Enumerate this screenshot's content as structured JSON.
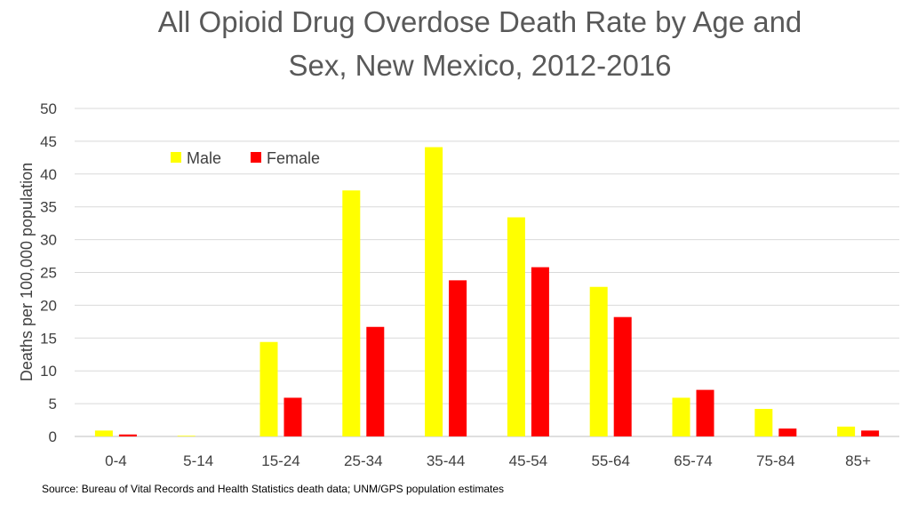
{
  "chart_data": {
    "type": "bar",
    "title_lines": [
      "All Opioid Drug Overdose Death Rate by Age and",
      "Sex, New Mexico, 2012-2016"
    ],
    "ylabel": "Deaths per 100,000 population",
    "xlabel": "",
    "ylim": [
      0,
      50
    ],
    "yticks": [
      0,
      5,
      10,
      15,
      20,
      25,
      30,
      35,
      40,
      45,
      50
    ],
    "grid": true,
    "legend_position": "top-left",
    "categories": [
      "0-4",
      "5-14",
      "15-24",
      "25-34",
      "35-44",
      "45-54",
      "55-64",
      "65-74",
      "75-84",
      "85+"
    ],
    "series": [
      {
        "name": "Male",
        "color": "#ffff00",
        "values": [
          0.9,
          0.1,
          14.4,
          37.5,
          44.1,
          33.4,
          22.8,
          5.9,
          4.2,
          1.5
        ]
      },
      {
        "name": "Female",
        "color": "#ff0000",
        "values": [
          0.3,
          0.0,
          5.9,
          16.7,
          23.8,
          25.8,
          18.2,
          7.1,
          1.2,
          0.9
        ]
      }
    ]
  },
  "source": "Source:  Bureau of Vital Records and Health Statistics death data; UNM/GPS population estimates"
}
